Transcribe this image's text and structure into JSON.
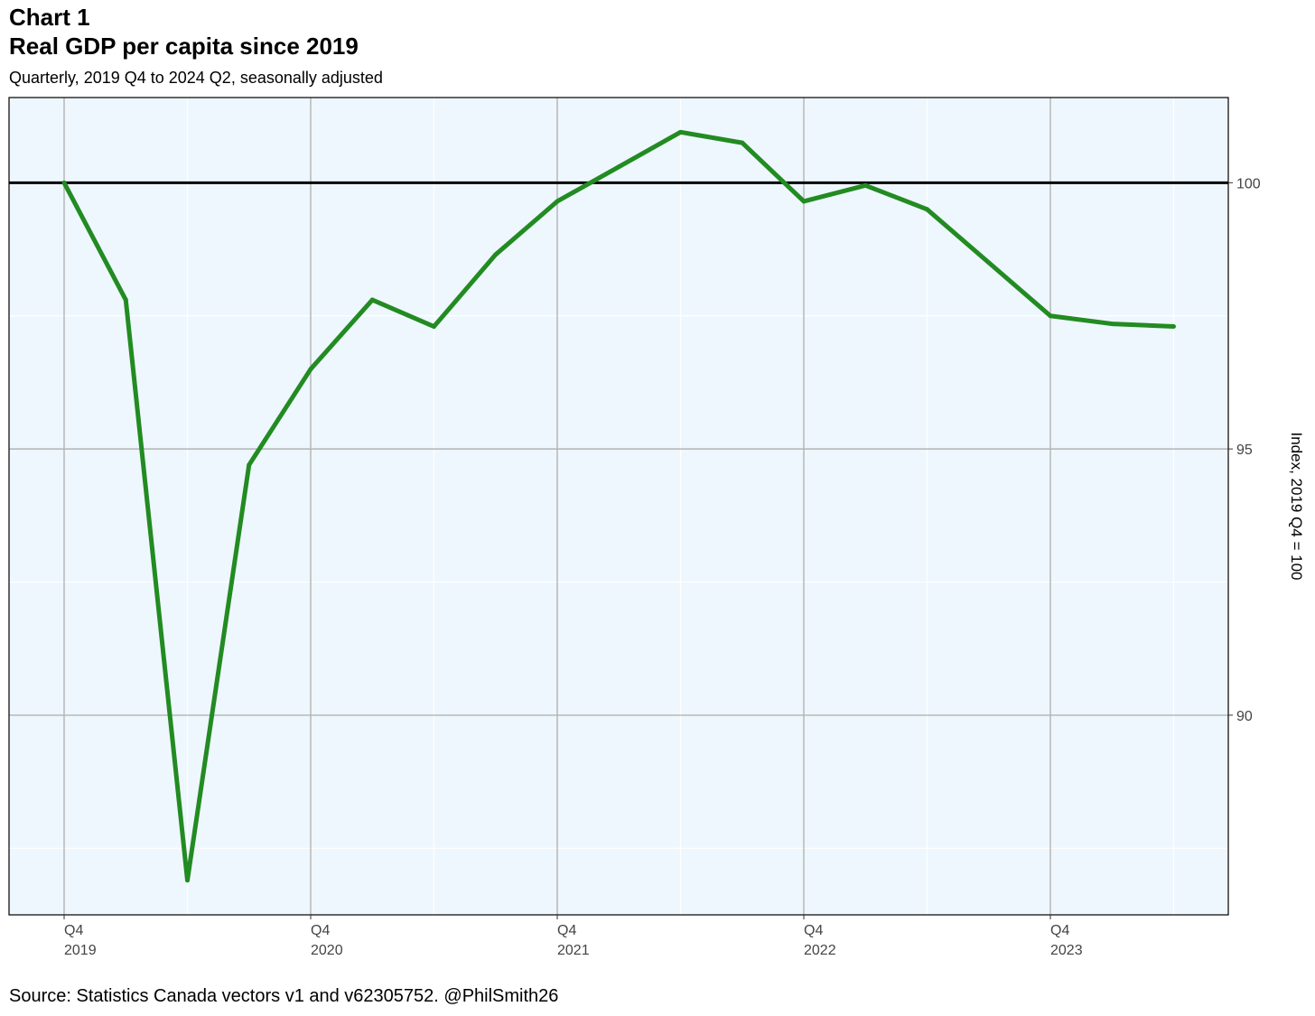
{
  "header": {
    "label": "Chart 1",
    "title": "Real GDP per capita since 2019",
    "subtitle": "Quarterly, 2019 Q4 to 2024 Q2, seasonally adjusted"
  },
  "source": "Source: Statistics Canada vectors v1 and v62305752. @PhilSmith26",
  "chart_data": {
    "type": "line",
    "x": [
      "2019 Q4",
      "2020 Q1",
      "2020 Q2",
      "2020 Q3",
      "2020 Q4",
      "2021 Q1",
      "2021 Q2",
      "2021 Q3",
      "2021 Q4",
      "2022 Q1",
      "2022 Q2",
      "2022 Q3",
      "2022 Q4",
      "2023 Q1",
      "2023 Q2",
      "2023 Q3",
      "2023 Q4",
      "2024 Q1",
      "2024 Q2"
    ],
    "series": [
      {
        "name": "",
        "color": "#228b22",
        "values": [
          100.0,
          97.8,
          86.9,
          94.7,
          96.5,
          97.8,
          97.3,
          98.65,
          99.65,
          100.3,
          100.95,
          100.75,
          99.65,
          99.95,
          99.5,
          98.5,
          97.5,
          97.35,
          97.3
        ]
      }
    ],
    "reference_line": {
      "y": 100,
      "color": "#000000"
    },
    "x_ticks": [
      {
        "index": 0,
        "q": "Q4",
        "year": "2019"
      },
      {
        "index": 4,
        "q": "Q4",
        "year": "2020"
      },
      {
        "index": 8,
        "q": "Q4",
        "year": "2021"
      },
      {
        "index": 12,
        "q": "Q4",
        "year": "2022"
      },
      {
        "index": 16,
        "q": "Q4",
        "year": "2023"
      }
    ],
    "y_ticks": [
      90,
      95,
      100
    ],
    "ylim": [
      86.25,
      101.6
    ],
    "ylabel": "Index, 2019 Q4 = 100",
    "y_axis_side": "right",
    "grid": true,
    "panel_color": "#eef7fd",
    "grid_color": "#b3b3b3"
  }
}
